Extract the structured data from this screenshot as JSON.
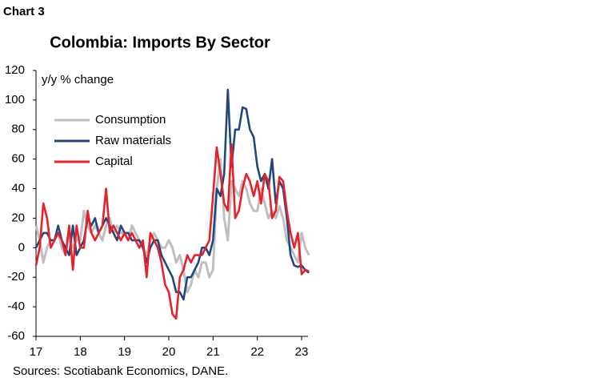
{
  "header": "Chart 3",
  "source": "Sources: Scotiabank Economics, DANE.",
  "chart_data": {
    "type": "line",
    "title": "Colombia: Imports By Sector",
    "y_label": "y/y % change",
    "categories": [
      "17",
      null,
      null,
      null,
      null,
      null,
      null,
      null,
      null,
      null,
      null,
      null,
      "18",
      null,
      null,
      null,
      null,
      null,
      null,
      null,
      null,
      null,
      null,
      null,
      "19",
      null,
      null,
      null,
      null,
      null,
      null,
      null,
      null,
      null,
      null,
      null,
      "20",
      null,
      null,
      null,
      null,
      null,
      null,
      null,
      null,
      null,
      null,
      null,
      "21",
      null,
      null,
      null,
      null,
      null,
      null,
      null,
      null,
      null,
      null,
      null,
      "22",
      null,
      null,
      null,
      null,
      null,
      null,
      null,
      null,
      null,
      null,
      null,
      "23",
      null,
      null
    ],
    "series": [
      {
        "name": "Consumption",
        "color": "#bfbfbf",
        "values": [
          15,
          5,
          -10,
          0,
          5,
          5,
          10,
          0,
          -5,
          10,
          0,
          5,
          5,
          25,
          15,
          10,
          15,
          10,
          5,
          15,
          20,
          10,
          15,
          10,
          10,
          5,
          15,
          10,
          5,
          0,
          -5,
          5,
          10,
          5,
          0,
          0,
          5,
          0,
          -10,
          -5,
          -15,
          -30,
          -25,
          -15,
          -20,
          -10,
          -10,
          -20,
          -15,
          40,
          60,
          20,
          5,
          45,
          40,
          35,
          45,
          40,
          30,
          25,
          25,
          40,
          30,
          20,
          25,
          20,
          28,
          20,
          5,
          0,
          -5,
          -10,
          10,
          0,
          -5
        ]
      },
      {
        "name": "Raw materials",
        "color": "#1f497d",
        "values": [
          0,
          5,
          10,
          10,
          5,
          5,
          15,
          5,
          0,
          -5,
          15,
          -5,
          0,
          5,
          20,
          15,
          20,
          10,
          15,
          20,
          15,
          10,
          5,
          15,
          10,
          10,
          5,
          5,
          5,
          0,
          -10,
          0,
          5,
          5,
          -5,
          -10,
          -15,
          -20,
          -30,
          -30,
          -35,
          -20,
          -20,
          -15,
          -10,
          0,
          0,
          -5,
          5,
          40,
          35,
          50,
          107,
          55,
          80,
          80,
          95,
          94,
          80,
          75,
          55,
          45,
          50,
          40,
          60,
          30,
          45,
          40,
          20,
          -5,
          -12,
          -13,
          -12,
          -15,
          -17
        ]
      },
      {
        "name": "Capital",
        "color": "#e8202a",
        "values": [
          -12,
          0,
          30,
          20,
          0,
          5,
          10,
          5,
          -5,
          15,
          -15,
          15,
          0,
          0,
          25,
          10,
          5,
          10,
          15,
          40,
          10,
          15,
          10,
          5,
          10,
          5,
          10,
          5,
          0,
          5,
          -20,
          10,
          5,
          0,
          -10,
          -25,
          -30,
          -45,
          -48,
          -20,
          -15,
          -5,
          -10,
          -5,
          -5,
          -5,
          0,
          5,
          35,
          68,
          50,
          30,
          25,
          70,
          20,
          25,
          40,
          50,
          45,
          35,
          45,
          30,
          50,
          45,
          20,
          25,
          48,
          45,
          25,
          10,
          0,
          10,
          -18,
          -15,
          -16
        ]
      }
    ],
    "ylim": [
      -60,
      120
    ],
    "yticks": [
      -60,
      -40,
      -20,
      0,
      20,
      40,
      60,
      80,
      100,
      120
    ]
  }
}
